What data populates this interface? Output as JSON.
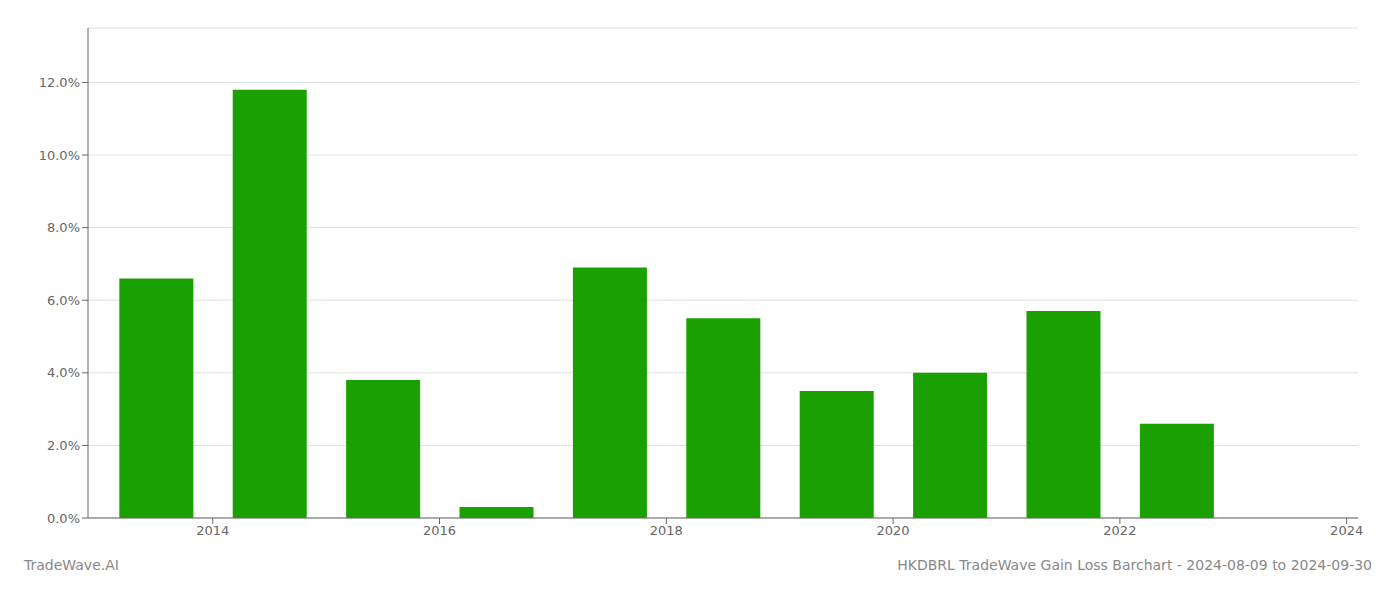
{
  "chart_data": {
    "type": "bar",
    "title": "HKDBRL TradeWave Gain Loss Barchart - 2024-08-09 to 2024-09-30",
    "annotations": [
      "TradeWave.AI"
    ],
    "x": [
      2013,
      2014,
      2015,
      2016,
      2017,
      2018,
      2019,
      2020,
      2021,
      2022,
      2023
    ],
    "values": [
      0.066,
      0.118,
      0.038,
      0.003,
      0.069,
      0.055,
      0.035,
      0.04,
      0.057,
      0.026,
      0.0
    ],
    "color": "#1aa000",
    "xlim": [
      2012.4,
      2023.6
    ],
    "xticks": [
      {
        "value": 2013.5,
        "label": "2014"
      },
      {
        "value": 2015.5,
        "label": "2016"
      },
      {
        "value": 2017.5,
        "label": "2018"
      },
      {
        "value": 2019.5,
        "label": "2020"
      },
      {
        "value": 2021.5,
        "label": "2022"
      },
      {
        "value": 2023.5,
        "label": "2024"
      }
    ],
    "ylim": [
      0,
      0.135
    ],
    "yticks": [
      {
        "value": 0,
        "label": "0.0%"
      },
      {
        "value": 0.02,
        "label": "2.0%"
      },
      {
        "value": 0.04,
        "label": "4.0%"
      },
      {
        "value": 0.06,
        "label": "6.0%"
      },
      {
        "value": 0.08,
        "label": "8.0%"
      },
      {
        "value": 0.1,
        "label": "10.0%"
      },
      {
        "value": 0.12,
        "label": "12.0%"
      }
    ],
    "grid": true
  }
}
